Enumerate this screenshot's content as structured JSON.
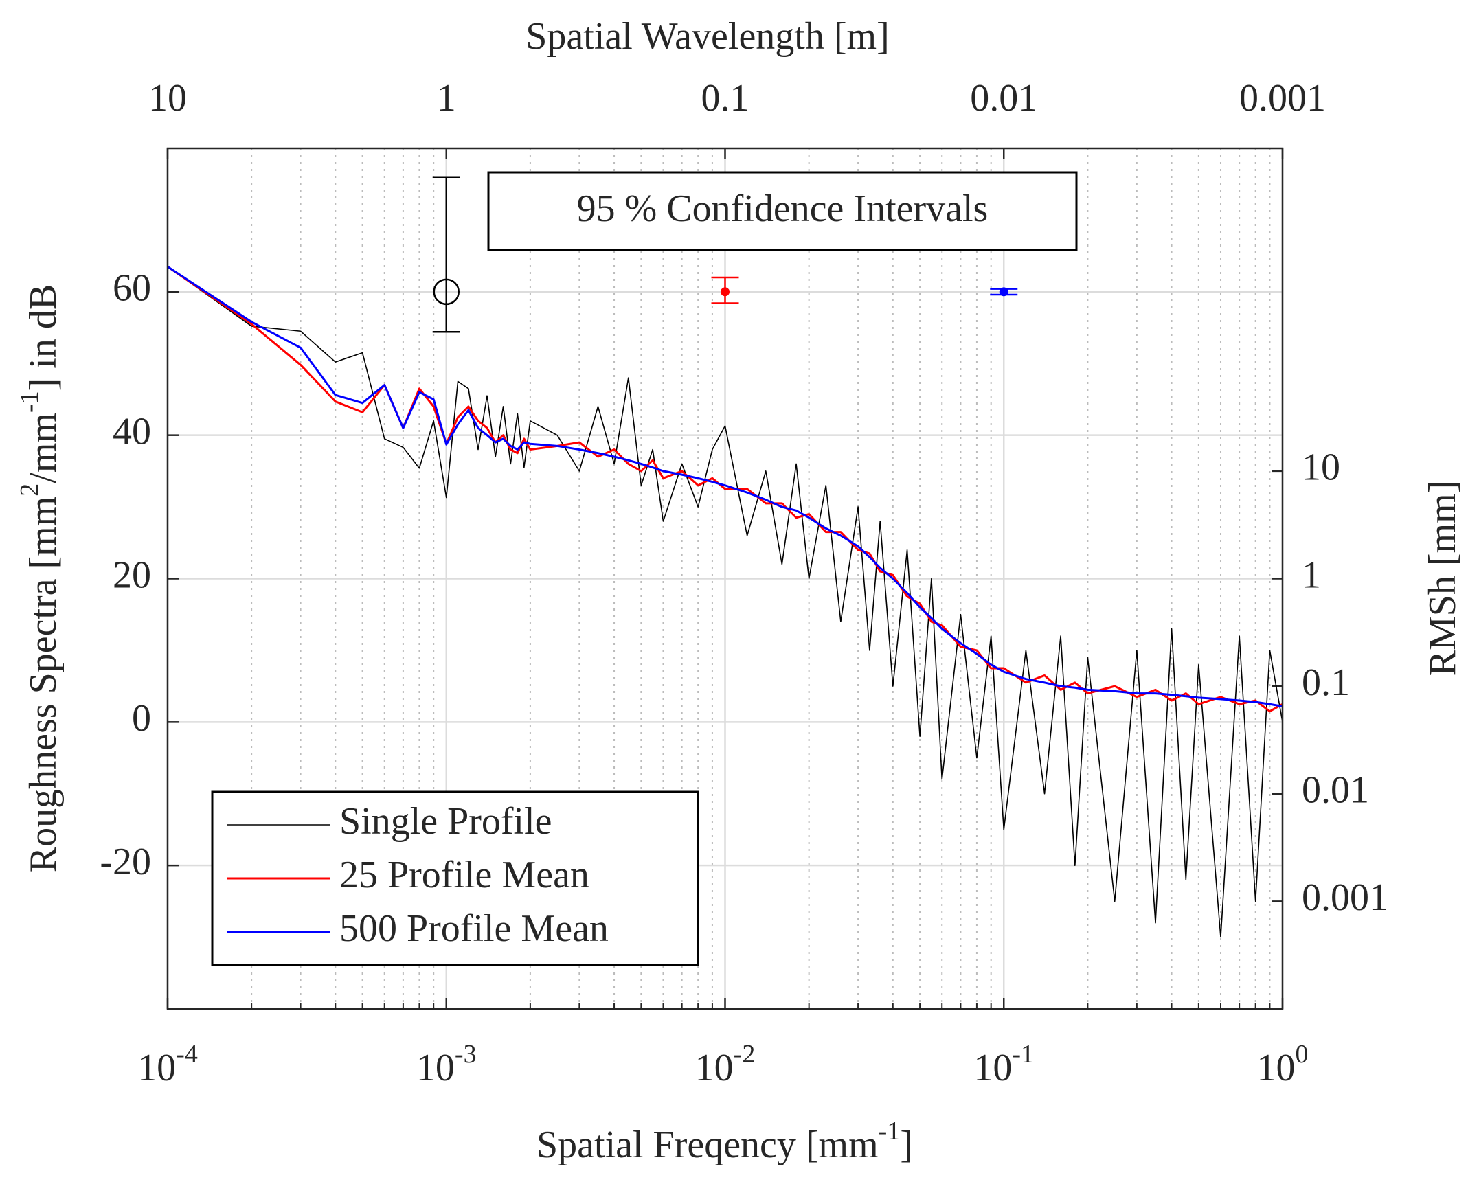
{
  "chart_data": {
    "type": "line",
    "xlabel": [
      "Spatial Freqency [mm",
      "-1",
      "]"
    ],
    "ylabel": [
      "Roughness Spectra [mm",
      "2",
      "/mm",
      "-1",
      "] in dB"
    ],
    "x2label": "Spatial Wavelength [m]",
    "y2label": "RMSh [mm]",
    "annotation": "95 % Confidence Intervals",
    "xscale": "log",
    "xlim": [
      0.0001,
      1
    ],
    "xticks": [
      {
        "value": 0.0001,
        "label": "10",
        "exponent": "-4"
      },
      {
        "value": 0.001,
        "label": "10",
        "exponent": "-3"
      },
      {
        "value": 0.01,
        "label": "10",
        "exponent": "-2"
      },
      {
        "value": 0.1,
        "label": "10",
        "exponent": "-1"
      },
      {
        "value": 1,
        "label": "10",
        "exponent": "0"
      }
    ],
    "xminorticks": [
      0.0002,
      0.0003,
      0.0004,
      0.0005,
      0.0006,
      0.0007,
      0.0008,
      0.0009,
      0.002,
      0.003,
      0.004,
      0.005,
      0.006,
      0.007,
      0.008,
      0.009,
      0.02,
      0.03,
      0.04,
      0.05,
      0.06,
      0.07,
      0.08,
      0.09,
      0.2,
      0.3,
      0.4,
      0.5,
      0.6,
      0.7,
      0.8,
      0.9
    ],
    "x2scale": "log",
    "x2lim": [
      10,
      0.001
    ],
    "x2ticks": [
      10,
      1,
      0.1,
      0.01,
      0.001
    ],
    "ylim": [
      -40,
      80
    ],
    "yticks": [
      -20,
      0,
      20,
      40,
      60
    ],
    "y2scale": "log",
    "y2lim": [
      0.0001,
      10000
    ],
    "y2ticks": [
      0.001,
      0.01,
      0.1,
      1,
      10
    ],
    "grid": true,
    "legend": "lower left",
    "x": [
      0.0001,
      0.0002,
      0.0003,
      0.0004,
      0.0005,
      0.0006,
      0.0007,
      0.0008,
      0.0009,
      0.001,
      0.0011,
      0.0012,
      0.0013,
      0.0014,
      0.0015,
      0.0016,
      0.0017,
      0.0018,
      0.0019,
      0.002,
      0.0025,
      0.003,
      0.0035,
      0.004,
      0.0045,
      0.005,
      0.0055,
      0.006,
      0.007,
      0.008,
      0.009,
      0.01,
      0.012,
      0.014,
      0.016,
      0.018,
      0.02,
      0.023,
      0.026,
      0.03,
      0.033,
      0.036,
      0.04,
      0.045,
      0.05,
      0.055,
      0.06,
      0.07,
      0.08,
      0.09,
      0.1,
      0.12,
      0.14,
      0.16,
      0.18,
      0.2,
      0.25,
      0.3,
      0.35,
      0.4,
      0.45,
      0.5,
      0.6,
      0.7,
      0.8,
      0.9,
      1
    ],
    "series": [
      {
        "name": "Single Profile",
        "color": "#000000",
        "width": 1.6,
        "values": [
          63.5,
          55.2,
          54.5,
          50.2,
          51.5,
          39.5,
          38.3,
          35.4,
          42,
          31.3,
          47.5,
          46.5,
          38,
          45.5,
          37,
          44,
          36,
          43,
          35.5,
          42,
          40,
          35,
          44,
          36,
          48,
          33,
          38,
          28,
          36,
          30,
          38,
          41.3,
          26,
          35,
          22,
          36,
          20,
          33,
          14,
          30,
          10,
          28,
          5,
          24,
          -2,
          20,
          -8,
          15,
          -5,
          12,
          -15,
          10,
          -10,
          12,
          -20,
          9,
          -25,
          10,
          -28,
          13,
          -22,
          8,
          -30,
          12,
          -25,
          10,
          0
        ]
      },
      {
        "name": "25 Profile Mean",
        "color": "#ff0000",
        "width": 3,
        "values": [
          63.5,
          55.5,
          49.8,
          44.7,
          43.2,
          47,
          41,
          46.5,
          44,
          38.8,
          42.5,
          44,
          42,
          41,
          39,
          40,
          38,
          37.5,
          39.5,
          38,
          38.5,
          39,
          37,
          38,
          36,
          35,
          36.5,
          34,
          35,
          33,
          34,
          32.5,
          32.5,
          30.5,
          30.5,
          28.5,
          29,
          26.5,
          26.5,
          24,
          23.5,
          21,
          20.5,
          17.5,
          16.5,
          14,
          13.5,
          10.5,
          10,
          7.5,
          7.5,
          5.5,
          6.5,
          4.5,
          5.5,
          4,
          5,
          3.5,
          4.5,
          3,
          4,
          2.5,
          3.5,
          2.5,
          3,
          1.5,
          2.5
        ]
      },
      {
        "name": "500 Profile Mean",
        "color": "#0000ff",
        "width": 3,
        "values": [
          63.5,
          55.8,
          52.2,
          45.6,
          44.5,
          47,
          41,
          46,
          45,
          38.7,
          41.5,
          43.5,
          41,
          40,
          39,
          39.5,
          38.5,
          38,
          39,
          38.8,
          38.5,
          38,
          37.5,
          37,
          36.5,
          36,
          35.5,
          35,
          34.5,
          34,
          33.5,
          33,
          32,
          31,
          30,
          29.5,
          28.5,
          27,
          26,
          24.5,
          23,
          21.5,
          20,
          18,
          16,
          14.5,
          13,
          11,
          9.5,
          8,
          7,
          6,
          5.5,
          5,
          4.8,
          4.5,
          4.3,
          4,
          4,
          3.8,
          3.6,
          3.4,
          3.2,
          3,
          2.8,
          2.5,
          2.2
        ]
      }
    ],
    "confidence_intervals": [
      {
        "x": 0.001,
        "y": 60,
        "lower": 54.4,
        "upper": 76,
        "color": "#000000",
        "marker": "open-circle"
      },
      {
        "x": 0.01,
        "y": 60,
        "lower": 58.4,
        "upper": 62,
        "color": "#ff0000",
        "marker": "dot"
      },
      {
        "x": 0.1,
        "y": 60,
        "lower": 59.6,
        "upper": 60.4,
        "color": "#0000ff",
        "marker": "dot"
      }
    ]
  }
}
